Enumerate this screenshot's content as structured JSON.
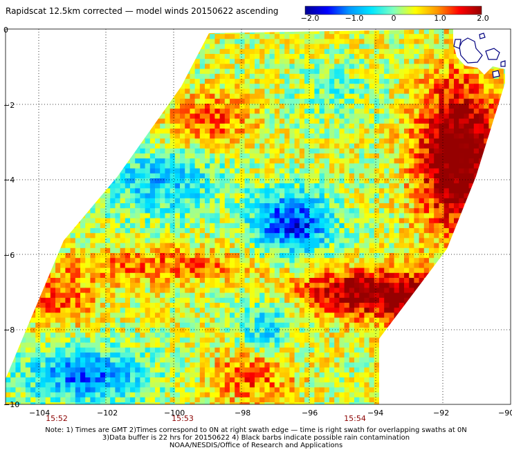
{
  "title": "Rapidscat 12.5km corrected — model winds 20150622 ascending",
  "colorbar": {
    "labels": [
      "−2.0",
      "−1.0",
      "0",
      "1.0",
      "2.0"
    ],
    "colors": [
      "#000096",
      "#0000ff",
      "#0096ff",
      "#00e6ff",
      "#7fffbf",
      "#ffff00",
      "#ff9600",
      "#ff0000",
      "#960000"
    ]
  },
  "map": {
    "x_ticks": [
      "−104",
      "−102",
      "−100",
      "−98",
      "−96",
      "−94",
      "−92",
      "−90"
    ],
    "y_ticks": [
      "0",
      "−2",
      "−4",
      "−6",
      "−8",
      "−10"
    ],
    "times": [
      "15:52",
      "15:53",
      "15:54"
    ]
  },
  "notes": [
    "Note: 1) Times are GMT 2)Times correspond to 0N at right swath edge — time is right swath for overlapping swaths at 0N",
    "3)Data buffer is 22 hrs for 20150622 4) Black barbs indicate possible rain contamination",
    "NOAA/NESDIS/Office of Research and Applications"
  ]
}
